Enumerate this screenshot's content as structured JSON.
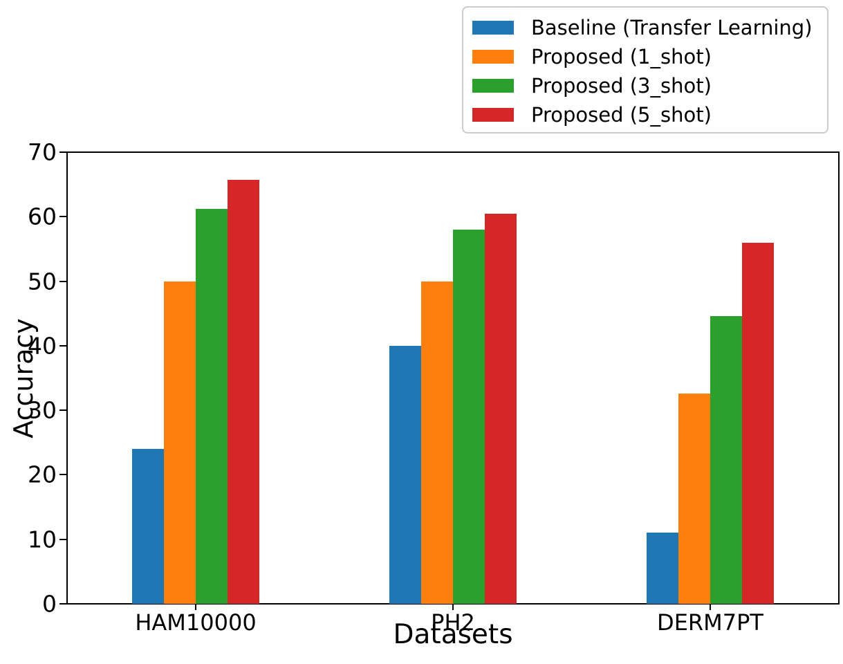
{
  "figure": {
    "background": "#ffffff",
    "text_color": "#000000",
    "axis_color": "#000000"
  },
  "chart_data": {
    "type": "bar",
    "title": "",
    "xlabel": "Datasets",
    "ylabel": "Accuracy",
    "categories": [
      "HAM10000",
      "PH2",
      "DERM7PT"
    ],
    "series": [
      {
        "key": "baseline-transfer-learning",
        "name": "Baseline (Transfer Learning)",
        "color": "#1f77b4",
        "values": [
          24.0,
          40.0,
          11.0
        ]
      },
      {
        "key": "proposed-1-shot",
        "name": "Proposed (1_shot)",
        "color": "#ff7f0e",
        "values": [
          50.0,
          50.0,
          32.6
        ]
      },
      {
        "key": "proposed-3-shot",
        "name": "Proposed (3_shot)",
        "color": "#2ca02c",
        "values": [
          61.2,
          58.0,
          44.6
        ]
      },
      {
        "key": "proposed-5-shot",
        "name": "Proposed (5_shot)",
        "color": "#d62728",
        "values": [
          65.7,
          60.5,
          56.0
        ]
      }
    ],
    "ylim": [
      0,
      70
    ],
    "yticks": [
      0,
      10,
      20,
      30,
      40,
      50,
      60,
      70
    ],
    "grid": false,
    "legend_position": "upper right",
    "legend_frame_color": "#cccccc"
  }
}
